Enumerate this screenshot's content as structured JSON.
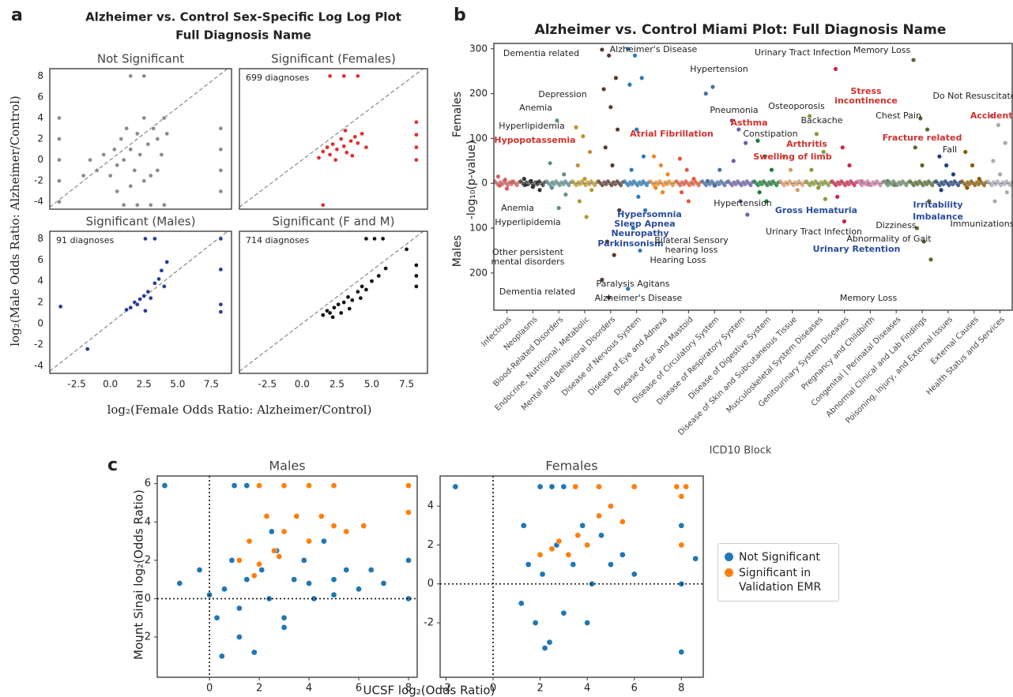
{
  "panel_labels": [
    "a",
    "b",
    "c"
  ],
  "panel_a": {
    "title": "Alzheimer vs. Control Sex-Specific Log Log Plot",
    "subtitle": "Full Diagnosis Name",
    "xlabel": "log₂(Female Odds Ratio: Alzheimer/Control)",
    "ylabel": "log₂(Male Odds Ratio: Alzheimer/Control)"
  },
  "panel_c": {
    "xlabel": "UCSF log₂(Odds Ratio)",
    "ylabel": "Mount Sinai log₂(Odds Ratio)"
  },
  "chart_data": [
    {
      "type": "scatter",
      "title": "Not Significant",
      "color": "#8c8c8c",
      "identity_line": true,
      "x": [
        -3.8,
        -3.8,
        -3.8,
        -3.8,
        -3.8,
        8.2,
        8.2,
        8.2,
        8.2,
        -1,
        -0.5,
        0,
        0.3,
        0.5,
        0.8,
        1,
        1.2,
        1.5,
        1.8,
        2,
        2.2,
        2.5,
        2.8,
        3,
        3.2,
        3.5,
        3.8,
        4,
        4.2,
        0.5,
        1.5,
        2.5,
        3.5,
        -2,
        -1.5,
        1,
        2,
        3,
        4,
        1.5,
        2.5
      ],
      "values": [
        -4,
        -2,
        0,
        2,
        4,
        -3,
        -1,
        1,
        3,
        -1,
        0.5,
        -1.5,
        1,
        -0.5,
        2,
        0,
        3,
        1,
        -1,
        2.5,
        0.5,
        4,
        1.5,
        -1.5,
        3,
        2,
        0.5,
        4,
        2.5,
        -3,
        -2.5,
        -2,
        -1,
        -1.5,
        0,
        -4.3,
        -4.3,
        -4.3,
        -4.3,
        8,
        8
      ],
      "xlim": [
        -4.5,
        9
      ],
      "ylim": [
        -4.7,
        8.7
      ],
      "yticks": [
        -4,
        -2,
        0,
        2,
        4,
        6,
        8
      ]
    },
    {
      "type": "scatter",
      "title": "Significant (Females)",
      "annotation": "699 diagnoses",
      "color": "#e03030",
      "identity_line": true,
      "x": [
        1.2,
        1.5,
        1.8,
        2,
        2.2,
        2.5,
        2.8,
        3,
        3.2,
        3.5,
        3.8,
        4,
        4.3,
        4.6,
        2.4,
        3.1,
        3.6,
        8.2,
        8.2,
        8.2,
        8.2,
        2,
        3,
        4,
        1.5
      ],
      "values": [
        0.2,
        0.8,
        1.2,
        0.5,
        1.5,
        1,
        2,
        1.3,
        0.7,
        1.8,
        2.2,
        1.6,
        2.5,
        1.2,
        0,
        2.8,
        0.4,
        0,
        1.2,
        2.4,
        3.6,
        8,
        8,
        8,
        -4.3
      ],
      "xlim": [
        -4.5,
        9
      ],
      "ylim": [
        -4.7,
        8.7
      ]
    },
    {
      "type": "scatter",
      "title": "Significant (Males)",
      "annotation": "91 diagnoses",
      "color": "#2b3b9a",
      "identity_line": true,
      "x": [
        1.5,
        1.8,
        2,
        2.2,
        2.5,
        2.8,
        3,
        3.3,
        3.6,
        4,
        4.2,
        2.6,
        3.8,
        1.2,
        -3.7,
        -1.7,
        8.2,
        8.2,
        8.2,
        2.6,
        3.3,
        8.2
      ],
      "values": [
        1.5,
        2,
        1.8,
        2.3,
        2.6,
        3,
        2.4,
        3.8,
        4.2,
        3.5,
        5.8,
        1.2,
        5,
        1.3,
        1.6,
        -2.4,
        5.1,
        1.8,
        1.1,
        8,
        8,
        8
      ],
      "xlim": [
        -4.5,
        9
      ],
      "ylim": [
        -4.7,
        8.7
      ],
      "yticks": [
        -4,
        -2,
        0,
        2,
        4,
        6,
        8
      ],
      "xticks": [
        -2.5,
        {
          "value": 0,
          "label": "0.0"
        },
        2.5,
        {
          "value": 5,
          "label": "5.0"
        },
        7.5
      ]
    },
    {
      "type": "scatter",
      "title": "Significant (F and M)",
      "annotation": "714 diagnoses",
      "color": "#111111",
      "identity_line": true,
      "x": [
        1.5,
        1.8,
        2,
        2.3,
        2.6,
        3,
        3.3,
        3.6,
        4,
        4.3,
        4.6,
        5,
        5.5,
        6,
        2.2,
        2.8,
        3.4,
        4.2,
        8.2,
        8.2,
        8.2,
        7.5,
        4.6,
        5.2,
        5.8
      ],
      "values": [
        0.8,
        1.2,
        1,
        1.5,
        1.8,
        2,
        2.5,
        2.2,
        3,
        3.5,
        3.2,
        4,
        4.5,
        5.2,
        0.6,
        1,
        1.4,
        2.4,
        3.5,
        4.5,
        5.5,
        7,
        8,
        8,
        8
      ],
      "xlim": [
        -4.5,
        9
      ],
      "ylim": [
        -4.7,
        8.7
      ],
      "xticks": [
        -2.5,
        {
          "value": 0,
          "label": "0.0"
        },
        2.5,
        {
          "value": 5,
          "label": "5.0"
        },
        7.5
      ]
    },
    {
      "type": "miami",
      "title": "Alzheimer vs. Control Miami Plot: Full Diagnosis Name",
      "ylabel": "-log₁₀(p-value)",
      "ylabel_top": "Females",
      "ylabel_bottom": "Males",
      "xlabel": "ICD10 Block",
      "categories": [
        "Infectious",
        "Neoplasms",
        "Blood-Related Disorders",
        "Endocrine, Nutritional, Metabolic",
        "Mental and Behavioral Disorders",
        "Disease of Nervous System",
        "Disease of Eye and Adnexa",
        "Disease of Ear and Mastoid",
        "Disease of Circulatory System",
        "Disease of Respiratory System",
        "Disease of Digestive System",
        "Disease of Skin and Subcutaneous Tissue",
        "Musculoskeletal System Diseases",
        "Genitourinary System Diseases",
        "Pregnancy and Childbirth",
        "Congenital | Perinatal Diseases",
        "Abnormal Clinical and Lab Findings",
        "Poisoning, Injury, and External Issues",
        "External Causes",
        "Health Status and Services"
      ],
      "colors": [
        "#d35f5f",
        "#333333",
        "#5f8f8f",
        "#b8962e",
        "#5b3a2e",
        "#2b7bba",
        "#e8892b",
        "#e05a3a",
        "#4a6fa5",
        "#6a5fa8",
        "#1a7a3a",
        "#d49a6a",
        "#8a9a3a",
        "#c8284a",
        "#c87aa0",
        "#6a8a6a",
        "#556b2f",
        "#1f3f7a",
        "#8b5a00",
        "#a8a8b8"
      ],
      "values": [
        [
          15,
          8,
          3,
          -5,
          -12
        ],
        [
          10,
          5,
          2,
          -3,
          -8,
          -15
        ],
        [
          45,
          140,
          20,
          -10,
          -55,
          -25
        ],
        [
          125,
          105,
          70,
          40,
          10,
          -15,
          -40,
          -75
        ],
        [
          298,
          285,
          235,
          210,
          170,
          120,
          80,
          40,
          -60,
          -130,
          -160,
          -215,
          -255
        ],
        [
          300,
          285,
          235,
          220,
          120,
          60,
          30,
          -30,
          -60,
          -100,
          -150,
          -235
        ],
        [
          60,
          40,
          20,
          -10,
          -20
        ],
        [
          55,
          30,
          10,
          -20,
          -40
        ],
        [
          200,
          215,
          30,
          5,
          -5
        ],
        [
          140,
          120,
          90,
          50,
          -40,
          -70
        ],
        [
          95,
          60,
          30,
          -20,
          -40
        ],
        [
          60,
          30,
          -15
        ],
        [
          150,
          110,
          70,
          30,
          -10,
          -35
        ],
        [
          255,
          80,
          40,
          -30,
          -85
        ],
        [
          5,
          -3
        ],
        [
          5,
          -4
        ],
        [
          275,
          145,
          120,
          80,
          40,
          -40,
          -100,
          -130,
          -170
        ],
        [
          60,
          40,
          20,
          -15
        ],
        [
          70,
          40,
          10,
          -10
        ],
        [
          150,
          130,
          90,
          50,
          20,
          -20,
          -40
        ]
      ],
      "ylim": [
        -283,
        312
      ],
      "yticks": [
        {
          "value": -200,
          "label": "200"
        },
        {
          "value": -100,
          "label": "100"
        },
        0,
        100,
        200,
        300
      ],
      "annotations": [
        {
          "text": "Dementia related",
          "color": "#222"
        },
        {
          "text": "Alzheimer's Disease",
          "color": "#222"
        },
        {
          "text": "Depression",
          "color": "#222"
        },
        {
          "text": "Anemia",
          "color": "#222"
        },
        {
          "text": "Hyperlipidemia",
          "color": "#222"
        },
        {
          "text": "Hypopotassemia",
          "color": "#d0312d"
        },
        {
          "text": "Atrial Fibrillation",
          "color": "#d0312d"
        },
        {
          "text": "Hypertension",
          "color": "#222"
        },
        {
          "text": "Pneumonia",
          "color": "#222"
        },
        {
          "text": "Asthma",
          "color": "#d0312d"
        },
        {
          "text": "Constipation",
          "color": "#222"
        },
        {
          "text": "Osteoporosis",
          "color": "#222"
        },
        {
          "text": "Backache",
          "color": "#222"
        },
        {
          "text": "Arthritis",
          "color": "#d0312d"
        },
        {
          "text": "Swelling of limb",
          "color": "#d0312d"
        },
        {
          "text": "Urinary Tract Infection",
          "color": "#222"
        },
        {
          "text": "Memory Loss",
          "color": "#222"
        },
        {
          "text": "Stress",
          "color": "#d0312d"
        },
        {
          "text": "incontinence",
          "color": "#d0312d"
        },
        {
          "text": "Chest Pain",
          "color": "#222"
        },
        {
          "text": "Do Not Resuscitate",
          "color": "#222"
        },
        {
          "text": "Fall",
          "color": "#222"
        },
        {
          "text": "Accidents",
          "color": "#d0312d"
        },
        {
          "text": "Fracture related",
          "color": "#d0312d"
        },
        {
          "text": "Anemia",
          "color": "#222"
        },
        {
          "text": "Hyperlipidemia",
          "color": "#222"
        },
        {
          "text": "Hypersomnia",
          "color": "#2a4d9b"
        },
        {
          "text": "Sleep Apnea",
          "color": "#2a4d9b"
        },
        {
          "text": "Neuropathy",
          "color": "#2a4d9b"
        },
        {
          "text": "Parkinsonism",
          "color": "#2a4d9b"
        },
        {
          "text": "Other persistent",
          "color": "#222"
        },
        {
          "text": "mental disorders",
          "color": "#222"
        },
        {
          "text": "Dementia related",
          "color": "#222"
        },
        {
          "text": "Paralysis Agitans",
          "color": "#222"
        },
        {
          "text": "Alzheimer's Disease",
          "color": "#222"
        },
        {
          "text": "Bilateral Sensory",
          "color": "#222"
        },
        {
          "text": "hearing loss",
          "color": "#222"
        },
        {
          "text": "Hearing Loss",
          "color": "#222"
        },
        {
          "text": "Hypertension",
          "color": "#222"
        },
        {
          "text": "Gross Hematuria",
          "color": "#2a4d9b"
        },
        {
          "text": "Urinary Tract Infection",
          "color": "#222"
        },
        {
          "text": "Irritability",
          "color": "#2a4d9b"
        },
        {
          "text": "Imbalance",
          "color": "#2a4d9b"
        },
        {
          "text": "Urinary Retention",
          "color": "#2a4d9b"
        },
        {
          "text": "Abnormality of Gait",
          "color": "#222"
        },
        {
          "text": "Dizziness",
          "color": "#222"
        },
        {
          "text": "Immunizations",
          "color": "#222"
        },
        {
          "text": "Memory Loss",
          "color": "#222"
        }
      ]
    },
    {
      "type": "scatter",
      "title": "Males",
      "zero_lines": true,
      "series": [
        {
          "name": "Not Significant",
          "color": "#1f77b4",
          "x": [
            -1.8,
            -1.2,
            -0.4,
            0,
            0.3,
            0.6,
            0.9,
            1.2,
            1.5,
            1.8,
            2.1,
            2.4,
            2.7,
            3,
            3.4,
            3.8,
            4.2,
            4.6,
            5,
            5.5,
            6,
            6.5,
            7,
            8,
            8,
            8,
            1,
            1.5,
            2,
            0.5,
            3,
            4,
            5,
            2.5,
            1.2
          ],
          "values": [
            5.9,
            0.8,
            1.5,
            0.2,
            -1,
            0.5,
            2,
            -2,
            1,
            -2.8,
            1.5,
            0,
            2.5,
            -1,
            1,
            2,
            0,
            3,
            1,
            1.5,
            0.5,
            1.5,
            0.8,
            0,
            2,
            5.9,
            5.9,
            5.9,
            5.9,
            -3,
            -1.5,
            0.8,
            0.2,
            3.5,
            -0.5
          ]
        },
        {
          "name": "Significant in Validation EMR",
          "color": "#ff7f0e",
          "x": [
            1.2,
            1.6,
            2,
            2.3,
            2.6,
            3,
            3.5,
            4,
            4.5,
            5,
            5.5,
            6.2,
            8,
            8,
            2,
            3,
            4,
            5,
            1.8,
            2.8
          ],
          "values": [
            2,
            3,
            1.8,
            4.3,
            2.5,
            3.5,
            4.3,
            3,
            4.3,
            3.8,
            3.5,
            3.8,
            5.9,
            4.5,
            5.9,
            5.9,
            5.9,
            5.9,
            1.2,
            2.2
          ]
        }
      ],
      "xlim": [
        -2.1,
        8.35
      ],
      "ylim": [
        -4.1,
        6.4
      ],
      "xticks": [
        0,
        2,
        4,
        6,
        8
      ],
      "yticks": [
        -2,
        0,
        2,
        4,
        6
      ]
    },
    {
      "type": "scatter",
      "title": "Females",
      "zero_lines": true,
      "series": [
        {
          "color": "#1f77b4",
          "x": [
            -1.6,
            1.2,
            1.5,
            1.8,
            2.1,
            2.4,
            2.7,
            3,
            3.4,
            3.8,
            4.2,
            4.6,
            5,
            5.5,
            6,
            8,
            8,
            8,
            8.6,
            2,
            2.5,
            3,
            1.3,
            4,
            2.2
          ],
          "values": [
            5,
            -1,
            1,
            -2,
            0.5,
            -3,
            2,
            -1.5,
            1,
            3,
            0,
            2.5,
            1,
            1.5,
            0.5,
            -3.5,
            0,
            3,
            1.3,
            5,
            5,
            5,
            3,
            -2,
            -3.3
          ]
        },
        {
          "color": "#ff7f0e",
          "x": [
            2,
            2.5,
            2.8,
            3.2,
            3.6,
            4,
            4.5,
            5,
            5.5,
            8,
            8,
            8.2,
            7.8,
            3.5,
            4.5,
            6
          ],
          "values": [
            1.5,
            1.8,
            2.2,
            1.5,
            2.5,
            2,
            3.5,
            4,
            3.2,
            4.5,
            2,
            5,
            5,
            5,
            5,
            5
          ]
        }
      ],
      "xlim": [
        -2.25,
        8.93
      ],
      "ylim": [
        -4.8,
        5.55
      ],
      "xticks": [
        -2,
        0,
        2,
        4,
        6,
        8
      ],
      "yticks": [
        -2,
        0,
        2,
        4
      ]
    }
  ]
}
